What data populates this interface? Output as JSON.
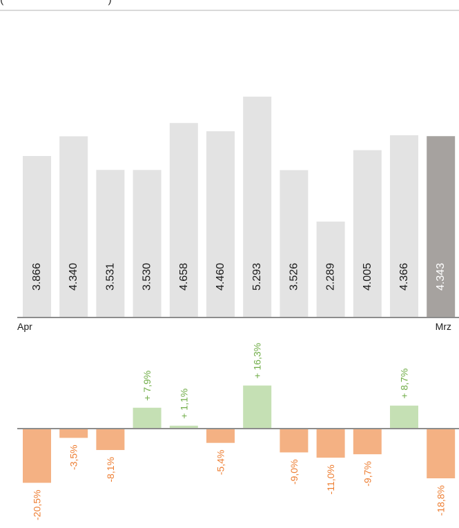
{
  "header": {
    "caption": "(                                  )"
  },
  "chart_data": [
    {
      "type": "bar",
      "categories": [
        "",
        "",
        "",
        "",
        "",
        "",
        "",
        "",
        "",
        "",
        "",
        ""
      ],
      "values": [
        3866,
        4340,
        3531,
        3530,
        4658,
        4460,
        5293,
        3526,
        2289,
        4005,
        4366,
        4343
      ],
      "value_labels": [
        "3.866",
        "4.340",
        "3.531",
        "3.530",
        "4.658",
        "4.460",
        "5.293",
        "3.526",
        "2.289",
        "4.005",
        "4.366",
        "4.343"
      ],
      "x_start_label": "Apr",
      "x_end_label": "Mrz",
      "highlight_index": 11,
      "ylim": [
        0,
        5293
      ],
      "colors": {
        "bar": "#e3e3e3",
        "highlight": "#a6a29f",
        "label": "#1a1a1a",
        "highlight_label": "#ffffff",
        "axis": "#8c8c8c"
      }
    },
    {
      "type": "bar",
      "values": [
        -20.5,
        -3.5,
        -8.1,
        7.9,
        1.1,
        -5.4,
        16.3,
        -9.0,
        -11.0,
        -9.7,
        8.7,
        -18.8
      ],
      "value_labels": [
        "-20,5%",
        "-3,5%",
        "-8,1%",
        "+ 7,9%",
        "+ 1,1%",
        "-5,4%",
        "+ 16,3%",
        "-9,0%",
        "-11,0%",
        "-9,7%",
        "+ 8,7%",
        "-18,8%"
      ],
      "colors": {
        "positive": "#c5e0b4",
        "negative": "#f4b183",
        "positive_text": "#70ad47",
        "negative_text": "#ed7d31",
        "axis": "#8c8c8c"
      }
    }
  ]
}
